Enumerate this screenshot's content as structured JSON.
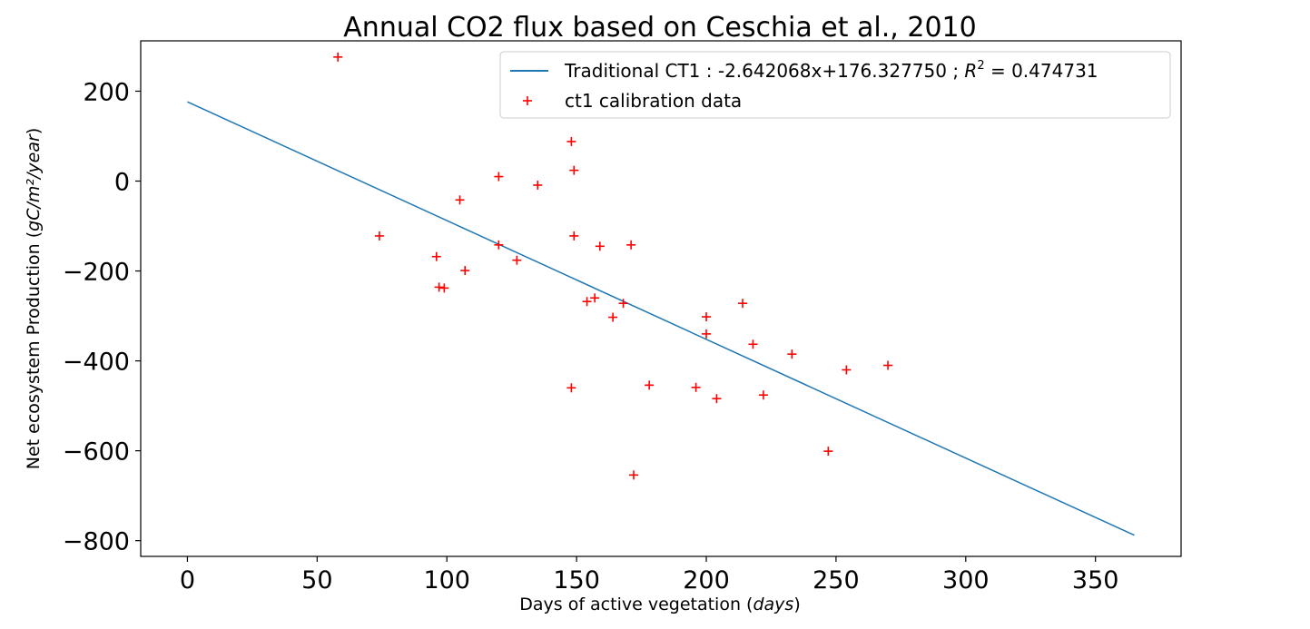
{
  "chart_data": {
    "type": "scatter",
    "title": "Annual CO2 flux based on Ceschia et al., 2010",
    "xlabel": "Days of active vegetation",
    "xlabel_unit": "days",
    "ylabel": "Net ecosystem Production",
    "ylabel_unit": "gC/m²/year",
    "xlim": [
      -18,
      383
    ],
    "ylim": [
      -835,
      312
    ],
    "x_ticks": [
      0,
      50,
      100,
      150,
      200,
      250,
      300,
      350
    ],
    "y_ticks": [
      200,
      0,
      -200,
      -400,
      -600,
      -800
    ],
    "y_tick_labels": [
      "200",
      "0",
      "−200",
      "−400",
      "−600",
      "−800"
    ],
    "legend_position": "top-right",
    "grid": false,
    "series": [
      {
        "name": "Traditional CT1 : -2.642068x+176.327750 ; R² = 0.474731",
        "kind": "line",
        "color": "#1f77b4",
        "slope": -2.642068,
        "intercept": 176.32775,
        "x_range": [
          0,
          365
        ]
      },
      {
        "name": "ct1 calibration data",
        "kind": "scatter",
        "marker": "+",
        "color": "#ff0000",
        "points": [
          [
            58,
            276
          ],
          [
            74,
            -122
          ],
          [
            96,
            -168
          ],
          [
            97,
            -236
          ],
          [
            99,
            -238
          ],
          [
            105,
            -42
          ],
          [
            107,
            -199
          ],
          [
            120,
            10
          ],
          [
            120,
            -142
          ],
          [
            127,
            -176
          ],
          [
            135,
            -9
          ],
          [
            148,
            88
          ],
          [
            148,
            -460
          ],
          [
            149,
            24
          ],
          [
            149,
            -122
          ],
          [
            154,
            -268
          ],
          [
            157,
            -260
          ],
          [
            159,
            -145
          ],
          [
            164,
            -303
          ],
          [
            168,
            -272
          ],
          [
            171,
            -142
          ],
          [
            172,
            -654
          ],
          [
            178,
            -454
          ],
          [
            196,
            -459
          ],
          [
            200,
            -302
          ],
          [
            200,
            -340
          ],
          [
            204,
            -484
          ],
          [
            214,
            -272
          ],
          [
            218,
            -363
          ],
          [
            222,
            -476
          ],
          [
            233,
            -385
          ],
          [
            247,
            -601
          ],
          [
            254,
            -420
          ],
          [
            270,
            -410
          ]
        ]
      }
    ],
    "legend": {
      "line_label_main": "Traditional CT1 : -2.642068x+176.327750 ; ",
      "line_label_r": "R",
      "line_label_sup": "2",
      "line_label_val": " =  0.474731",
      "scatter_label": "ct1 calibration data"
    }
  }
}
